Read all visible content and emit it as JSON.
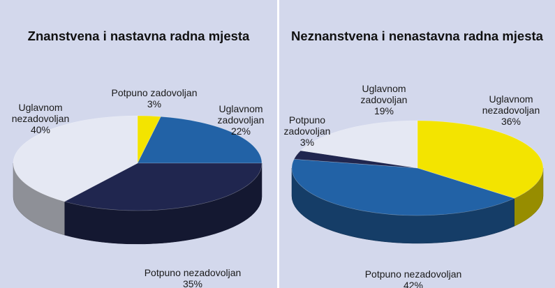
{
  "chart_data": [
    {
      "type": "pie",
      "title": "Znanstvena i nastavna radna mjesta",
      "slices": [
        {
          "label": "Potpuno zadovoljan",
          "value": 3,
          "value_label": "3%",
          "color": "#f3e400"
        },
        {
          "label": "Uglavnom zadovoljan",
          "value": 22,
          "value_label": "22%",
          "color": "#2262a6"
        },
        {
          "label": "Potpuno nezadovoljan",
          "value": 35,
          "value_label": "35%",
          "color": "#20264f"
        },
        {
          "label": "Uglavnom nezadovoljan",
          "value": 40,
          "value_label": "40%",
          "color": "#e5e8f3"
        }
      ]
    },
    {
      "type": "pie",
      "title": "Neznanstvena i nenastavna radna mjesta",
      "slices": [
        {
          "label": "Uglavnom nezadovoljan",
          "value": 36,
          "value_label": "36%",
          "color": "#f3e400"
        },
        {
          "label": "Potpuno nezadovoljan",
          "value": 42,
          "value_label": "42%",
          "color": "#2262a6"
        },
        {
          "label": "Potpuno zadovoljan",
          "value": 3,
          "value_label": "3%",
          "color": "#20264f"
        },
        {
          "label": "Uglavnom zadovoljan",
          "value": 19,
          "value_label": "19%",
          "color": "#e5e8f3"
        }
      ]
    }
  ]
}
